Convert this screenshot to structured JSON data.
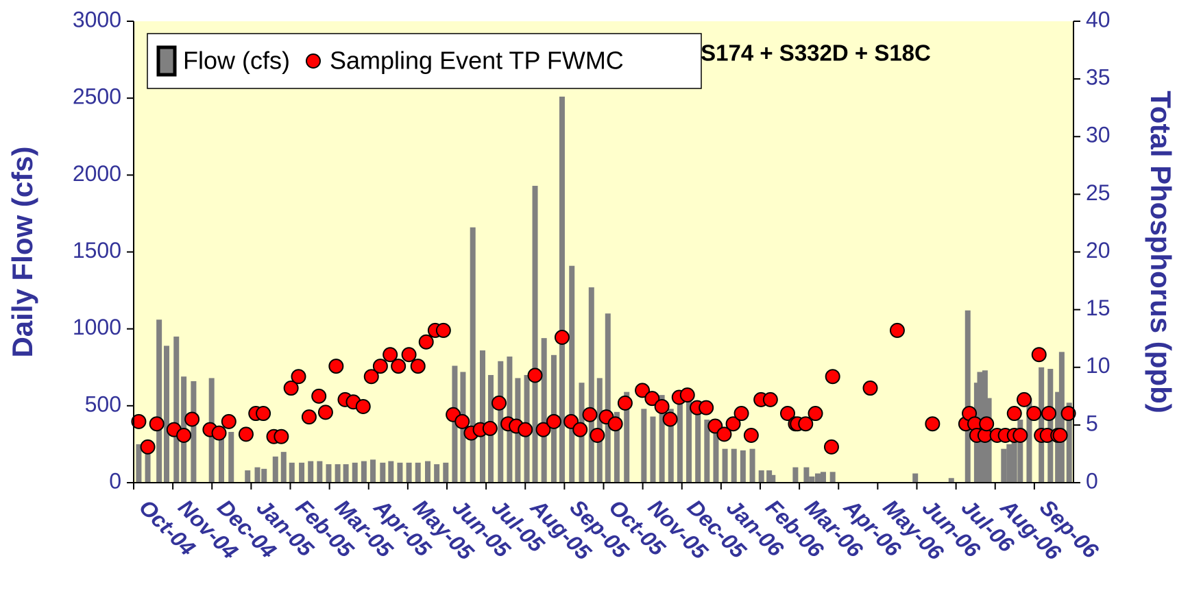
{
  "chart_data": {
    "type": "bar",
    "annotation": "S174 + S332D + S18C",
    "ylabel": "Daily Flow (cfs)",
    "y2label": "Total Phosphorus (ppb)",
    "ylim": [
      0,
      3000
    ],
    "yticks": [
      0,
      500,
      1000,
      1500,
      2000,
      2500,
      3000
    ],
    "y2lim": [
      0,
      40
    ],
    "y2ticks": [
      0,
      5,
      10,
      15,
      20,
      25,
      30,
      35,
      40
    ],
    "xlim": [
      0,
      24
    ],
    "xticks": [
      {
        "value": 0,
        "label": "Oct-04"
      },
      {
        "value": 1,
        "label": "Nov-04"
      },
      {
        "value": 2,
        "label": "Dec-04"
      },
      {
        "value": 3,
        "label": "Jan-05"
      },
      {
        "value": 4,
        "label": "Feb-05"
      },
      {
        "value": 5,
        "label": "Mar-05"
      },
      {
        "value": 6,
        "label": "Apr-05"
      },
      {
        "value": 7,
        "label": "May-05"
      },
      {
        "value": 8,
        "label": "Jun-05"
      },
      {
        "value": 9,
        "label": "Jul-05"
      },
      {
        "value": 10,
        "label": "Aug-05"
      },
      {
        "value": 11,
        "label": "Sep-05"
      },
      {
        "value": 12,
        "label": "Oct-05"
      },
      {
        "value": 13,
        "label": "Nov-05"
      },
      {
        "value": 14,
        "label": "Dec-05"
      },
      {
        "value": 15,
        "label": "Jan-06"
      },
      {
        "value": 16,
        "label": "Feb-06"
      },
      {
        "value": 17,
        "label": "Mar-06"
      },
      {
        "value": 18,
        "label": "Apr-06"
      },
      {
        "value": 19,
        "label": "May-06"
      },
      {
        "value": 20,
        "label": "Jun-06"
      },
      {
        "value": 21,
        "label": "Jul-06"
      },
      {
        "value": 22,
        "label": "Aug-06"
      },
      {
        "value": 23,
        "label": "Sep-06"
      }
    ],
    "legend": "top-left",
    "series": [
      {
        "name": "Flow (cfs)",
        "type": "bar",
        "color": "#808080",
        "x": [
          0.13,
          0.36,
          0.65,
          0.84,
          1.09,
          1.28,
          1.53,
          1.99,
          2.24,
          2.49,
          2.91,
          3.16,
          3.33,
          3.62,
          3.83,
          4.04,
          4.29,
          4.52,
          4.75,
          4.98,
          5.21,
          5.42,
          5.65,
          5.88,
          6.11,
          6.36,
          6.57,
          6.8,
          7.03,
          7.26,
          7.51,
          7.74,
          7.97,
          8.2,
          8.41,
          8.66,
          8.91,
          9.12,
          9.37,
          9.6,
          9.81,
          10.04,
          10.25,
          10.48,
          10.73,
          10.94,
          11.19,
          11.44,
          11.69,
          11.9,
          12.11,
          12.34,
          12.59,
          13.03,
          13.26,
          13.49,
          13.72,
          13.95,
          14.18,
          14.41,
          14.64,
          14.87,
          15.1,
          15.33,
          15.56,
          15.8,
          16.03,
          16.23,
          16.32,
          16.9,
          17.18,
          17.32,
          17.47,
          17.61,
          17.85,
          19.96,
          20.88,
          21.3,
          21.53,
          21.61,
          21.74,
          21.84,
          22.22,
          22.36,
          22.49,
          22.64,
          22.87,
          23.18,
          23.41,
          23.6,
          23.7,
          23.89
        ],
        "values": [
          250,
          230,
          1060,
          890,
          950,
          690,
          660,
          680,
          330,
          330,
          80,
          100,
          90,
          170,
          200,
          130,
          130,
          140,
          140,
          120,
          120,
          120,
          130,
          140,
          150,
          130,
          140,
          130,
          130,
          130,
          140,
          120,
          130,
          760,
          720,
          1660,
          860,
          700,
          790,
          820,
          680,
          700,
          1930,
          940,
          830,
          2510,
          1410,
          650,
          1270,
          680,
          1100,
          460,
          590,
          480,
          430,
          570,
          480,
          530,
          550,
          480,
          410,
          330,
          220,
          220,
          210,
          220,
          80,
          80,
          50,
          100,
          100,
          40,
          60,
          70,
          70,
          60,
          30,
          1120,
          650,
          720,
          730,
          550,
          220,
          250,
          270,
          410,
          550,
          750,
          740,
          590,
          850,
          520
        ]
      },
      {
        "name": "Sampling Event TP FWMC",
        "type": "scatter",
        "axis": "y2",
        "color": "#ff0000",
        "x": [
          0.13,
          0.36,
          0.59,
          1.03,
          1.28,
          1.49,
          1.95,
          2.18,
          2.43,
          2.87,
          3.12,
          3.31,
          3.58,
          3.77,
          4.02,
          4.21,
          4.48,
          4.73,
          4.9,
          5.17,
          5.4,
          5.61,
          5.86,
          6.07,
          6.3,
          6.55,
          6.76,
          7.03,
          7.26,
          7.47,
          7.7,
          7.91,
          8.16,
          8.39,
          8.62,
          8.85,
          9.1,
          9.33,
          9.56,
          9.77,
          10.0,
          10.25,
          10.46,
          10.73,
          10.94,
          11.17,
          11.4,
          11.65,
          11.84,
          12.07,
          12.3,
          12.55,
          12.99,
          13.24,
          13.49,
          13.7,
          13.93,
          14.14,
          14.39,
          14.62,
          14.85,
          15.08,
          15.31,
          15.52,
          15.77,
          16.02,
          16.26,
          16.7,
          16.9,
          16.95,
          17.16,
          17.41,
          17.82,
          17.85,
          18.81,
          19.5,
          20.4,
          21.25,
          21.34,
          21.48,
          21.53,
          21.74,
          21.78,
          22.05,
          22.26,
          22.49,
          22.49,
          22.64,
          22.74,
          22.99,
          23.12,
          23.18,
          23.33,
          23.37,
          23.6,
          23.66,
          23.87
        ],
        "values": [
          5.3,
          3.1,
          5.1,
          4.6,
          4.1,
          5.5,
          4.6,
          4.3,
          5.3,
          4.2,
          6.0,
          6.0,
          4.0,
          4.0,
          8.2,
          9.2,
          5.7,
          7.5,
          6.1,
          10.1,
          7.2,
          7.0,
          6.6,
          9.2,
          10.1,
          11.1,
          10.1,
          11.1,
          10.1,
          12.2,
          13.2,
          13.2,
          5.9,
          5.3,
          4.3,
          4.6,
          4.7,
          6.9,
          5.1,
          4.9,
          4.6,
          9.3,
          4.6,
          5.3,
          12.6,
          5.3,
          4.6,
          5.9,
          4.1,
          5.7,
          5.1,
          6.9,
          8.0,
          7.3,
          6.6,
          5.5,
          7.4,
          7.6,
          6.5,
          6.5,
          4.9,
          4.2,
          5.1,
          6.0,
          4.1,
          7.2,
          7.2,
          6.0,
          5.1,
          5.1,
          5.1,
          6.0,
          3.1,
          9.2,
          8.2,
          13.2,
          5.1,
          5.1,
          6.0,
          5.1,
          4.1,
          4.1,
          5.1,
          4.1,
          4.1,
          4.1,
          6.0,
          4.1,
          7.2,
          6.0,
          11.1,
          4.1,
          4.1,
          6.0,
          4.1,
          4.1,
          6.0
        ]
      }
    ]
  }
}
